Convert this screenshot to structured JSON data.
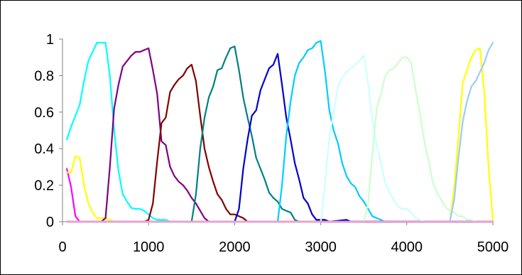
{
  "chart_data": {
    "type": "line",
    "xlim": [
      0,
      5000
    ],
    "ylim": [
      0,
      1
    ],
    "x_ticks": [
      0,
      1000,
      2000,
      3000,
      4000,
      5000
    ],
    "x_tick_labels": [
      "0",
      "1000",
      "2000",
      "3000",
      "4000",
      "5000"
    ],
    "y_ticks": [
      0,
      0.2,
      0.4,
      0.6,
      0.8,
      1
    ],
    "y_tick_labels": [
      "0",
      "0.2",
      "0.4",
      "0.6",
      "0.8",
      "1"
    ],
    "grid": false,
    "legend": "none",
    "series": [
      {
        "color": "#00FFFF",
        "points": [
          [
            50,
            0.45
          ],
          [
            100,
            0.52
          ],
          [
            150,
            0.58
          ],
          [
            200,
            0.64
          ],
          [
            250,
            0.77
          ],
          [
            300,
            0.88
          ],
          [
            350,
            0.93
          ],
          [
            400,
            0.98
          ],
          [
            450,
            0.98
          ],
          [
            500,
            0.98
          ],
          [
            550,
            0.8
          ],
          [
            600,
            0.5
          ],
          [
            650,
            0.28
          ],
          [
            700,
            0.15
          ],
          [
            750,
            0.11
          ],
          [
            800,
            0.075
          ],
          [
            850,
            0.07
          ],
          [
            900,
            0.07
          ],
          [
            950,
            0.06
          ],
          [
            1000,
            0.04
          ],
          [
            1050,
            0.02
          ],
          [
            1100,
            0.01
          ],
          [
            1150,
            0.01
          ],
          [
            1200,
            0.01
          ],
          [
            1250,
            0.0
          ],
          [
            1300,
            0.0
          ],
          [
            5000,
            0.0
          ]
        ]
      },
      {
        "color": "#FF00FF",
        "points": [
          [
            50,
            0.29
          ],
          [
            100,
            0.19
          ],
          [
            150,
            0.03
          ],
          [
            200,
            0.0
          ],
          [
            5000,
            0.0
          ]
        ]
      },
      {
        "color": "#FFFF00",
        "points": [
          [
            50,
            0.27
          ],
          [
            100,
            0.27
          ],
          [
            150,
            0.36
          ],
          [
            200,
            0.35
          ],
          [
            250,
            0.2
          ],
          [
            300,
            0.1
          ],
          [
            350,
            0.05
          ],
          [
            400,
            0.02
          ],
          [
            450,
            0.02
          ],
          [
            500,
            0.02
          ],
          [
            550,
            0.01
          ],
          [
            600,
            0.0
          ],
          [
            4500,
            0.0
          ],
          [
            4550,
            0.18
          ],
          [
            4600,
            0.46
          ],
          [
            4650,
            0.76
          ],
          [
            4700,
            0.83
          ],
          [
            4750,
            0.9
          ],
          [
            4800,
            0.94
          ],
          [
            4850,
            0.95
          ],
          [
            4900,
            0.71
          ],
          [
            4950,
            0.3
          ],
          [
            5000,
            0.01
          ]
        ]
      },
      {
        "color": "#800080",
        "points": [
          [
            50,
            0.0
          ],
          [
            450,
            0.0
          ],
          [
            500,
            0.02
          ],
          [
            550,
            0.3
          ],
          [
            600,
            0.62
          ],
          [
            650,
            0.75
          ],
          [
            700,
            0.85
          ],
          [
            750,
            0.88
          ],
          [
            800,
            0.91
          ],
          [
            850,
            0.93
          ],
          [
            900,
            0.93
          ],
          [
            950,
            0.94
          ],
          [
            1000,
            0.95
          ],
          [
            1050,
            0.83
          ],
          [
            1100,
            0.7
          ],
          [
            1150,
            0.44
          ],
          [
            1200,
            0.42
          ],
          [
            1250,
            0.3
          ],
          [
            1300,
            0.25
          ],
          [
            1350,
            0.22
          ],
          [
            1400,
            0.2
          ],
          [
            1450,
            0.17
          ],
          [
            1500,
            0.13
          ],
          [
            1550,
            0.1
          ],
          [
            1600,
            0.06
          ],
          [
            1650,
            0.02
          ],
          [
            1700,
            0.0
          ],
          [
            5000,
            0.0
          ]
        ]
      },
      {
        "color": "#800000",
        "points": [
          [
            50,
            0.0
          ],
          [
            950,
            0.0
          ],
          [
            1000,
            0.01
          ],
          [
            1050,
            0.1
          ],
          [
            1100,
            0.33
          ],
          [
            1150,
            0.54
          ],
          [
            1200,
            0.57
          ],
          [
            1250,
            0.71
          ],
          [
            1300,
            0.75
          ],
          [
            1350,
            0.78
          ],
          [
            1400,
            0.8
          ],
          [
            1450,
            0.84
          ],
          [
            1500,
            0.86
          ],
          [
            1550,
            0.77
          ],
          [
            1600,
            0.58
          ],
          [
            1650,
            0.4
          ],
          [
            1700,
            0.3
          ],
          [
            1750,
            0.22
          ],
          [
            1800,
            0.15
          ],
          [
            1850,
            0.12
          ],
          [
            1900,
            0.07
          ],
          [
            1950,
            0.04
          ],
          [
            2000,
            0.04
          ],
          [
            2050,
            0.03
          ],
          [
            2100,
            0.02
          ],
          [
            2150,
            0.0
          ],
          [
            5000,
            0.0
          ]
        ]
      },
      {
        "color": "#008080",
        "points": [
          [
            50,
            0.0
          ],
          [
            1500,
            0.0
          ],
          [
            1550,
            0.15
          ],
          [
            1600,
            0.4
          ],
          [
            1650,
            0.57
          ],
          [
            1700,
            0.68
          ],
          [
            1750,
            0.74
          ],
          [
            1800,
            0.83
          ],
          [
            1850,
            0.84
          ],
          [
            1900,
            0.9
          ],
          [
            1950,
            0.95
          ],
          [
            2000,
            0.96
          ],
          [
            2050,
            0.83
          ],
          [
            2100,
            0.68
          ],
          [
            2150,
            0.57
          ],
          [
            2200,
            0.47
          ],
          [
            2250,
            0.35
          ],
          [
            2300,
            0.29
          ],
          [
            2350,
            0.23
          ],
          [
            2400,
            0.16
          ],
          [
            2450,
            0.13
          ],
          [
            2500,
            0.11
          ],
          [
            2550,
            0.07
          ],
          [
            2600,
            0.06
          ],
          [
            2650,
            0.05
          ],
          [
            2700,
            0.01
          ],
          [
            2750,
            0.0
          ],
          [
            5000,
            0.0
          ]
        ]
      },
      {
        "color": "#0000CC",
        "points": [
          [
            50,
            0.0
          ],
          [
            2000,
            0.0
          ],
          [
            2050,
            0.07
          ],
          [
            2100,
            0.29
          ],
          [
            2150,
            0.45
          ],
          [
            2200,
            0.58
          ],
          [
            2250,
            0.61
          ],
          [
            2300,
            0.72
          ],
          [
            2350,
            0.78
          ],
          [
            2400,
            0.84
          ],
          [
            2450,
            0.86
          ],
          [
            2500,
            0.92
          ],
          [
            2550,
            0.75
          ],
          [
            2600,
            0.57
          ],
          [
            2650,
            0.45
          ],
          [
            2700,
            0.32
          ],
          [
            2750,
            0.23
          ],
          [
            2800,
            0.13
          ],
          [
            2850,
            0.1
          ],
          [
            2900,
            0.04
          ],
          [
            2950,
            0.01
          ],
          [
            3000,
            0.01
          ],
          [
            3050,
            0.01
          ],
          [
            3100,
            0.0
          ],
          [
            3300,
            0.01
          ],
          [
            3350,
            0.0
          ],
          [
            5000,
            0.0
          ]
        ]
      },
      {
        "color": "#00CCFF",
        "points": [
          [
            50,
            0.0
          ],
          [
            2500,
            0.0
          ],
          [
            2550,
            0.2
          ],
          [
            2600,
            0.47
          ],
          [
            2650,
            0.66
          ],
          [
            2700,
            0.8
          ],
          [
            2750,
            0.87
          ],
          [
            2800,
            0.9
          ],
          [
            2850,
            0.94
          ],
          [
            2900,
            0.95
          ],
          [
            2950,
            0.98
          ],
          [
            3000,
            0.99
          ],
          [
            3050,
            0.82
          ],
          [
            3100,
            0.61
          ],
          [
            3150,
            0.5
          ],
          [
            3200,
            0.43
          ],
          [
            3250,
            0.32
          ],
          [
            3300,
            0.25
          ],
          [
            3350,
            0.21
          ],
          [
            3400,
            0.19
          ],
          [
            3450,
            0.14
          ],
          [
            3500,
            0.11
          ],
          [
            3550,
            0.07
          ],
          [
            3600,
            0.03
          ],
          [
            3650,
            0.02
          ],
          [
            3700,
            0.01
          ],
          [
            3750,
            0.0
          ],
          [
            5000,
            0.0
          ]
        ]
      },
      {
        "color": "#CCFFFF",
        "points": [
          [
            50,
            0.0
          ],
          [
            3000,
            0.0
          ],
          [
            3050,
            0.21
          ],
          [
            3100,
            0.46
          ],
          [
            3150,
            0.6
          ],
          [
            3200,
            0.74
          ],
          [
            3250,
            0.79
          ],
          [
            3300,
            0.82
          ],
          [
            3350,
            0.84
          ],
          [
            3400,
            0.86
          ],
          [
            3450,
            0.88
          ],
          [
            3500,
            0.91
          ],
          [
            3550,
            0.76
          ],
          [
            3600,
            0.56
          ],
          [
            3650,
            0.42
          ],
          [
            3700,
            0.32
          ],
          [
            3750,
            0.21
          ],
          [
            3800,
            0.16
          ],
          [
            3850,
            0.12
          ],
          [
            3900,
            0.08
          ],
          [
            3950,
            0.07
          ],
          [
            4000,
            0.07
          ],
          [
            4050,
            0.05
          ],
          [
            4100,
            0.02
          ],
          [
            4150,
            0.01
          ],
          [
            4200,
            0.0
          ],
          [
            5000,
            0.0
          ]
        ]
      },
      {
        "color": "#CCFFCC",
        "points": [
          [
            50,
            0.0
          ],
          [
            3500,
            0.0
          ],
          [
            3550,
            0.1
          ],
          [
            3600,
            0.37
          ],
          [
            3650,
            0.62
          ],
          [
            3700,
            0.7
          ],
          [
            3750,
            0.8
          ],
          [
            3800,
            0.83
          ],
          [
            3850,
            0.84
          ],
          [
            3900,
            0.87
          ],
          [
            3950,
            0.9
          ],
          [
            4000,
            0.9
          ],
          [
            4050,
            0.87
          ],
          [
            4100,
            0.73
          ],
          [
            4150,
            0.6
          ],
          [
            4200,
            0.45
          ],
          [
            4250,
            0.34
          ],
          [
            4300,
            0.22
          ],
          [
            4350,
            0.16
          ],
          [
            4400,
            0.12
          ],
          [
            4450,
            0.08
          ],
          [
            4500,
            0.06
          ],
          [
            4550,
            0.05
          ],
          [
            4600,
            0.03
          ],
          [
            4650,
            0.03
          ],
          [
            4700,
            0.01
          ],
          [
            4750,
            0.01
          ],
          [
            4800,
            0.0
          ],
          [
            5000,
            0.0
          ]
        ]
      },
      {
        "color": "#99CCFF",
        "points": [
          [
            50,
            0.0
          ],
          [
            4500,
            0.0
          ],
          [
            4550,
            0.12
          ],
          [
            4600,
            0.35
          ],
          [
            4650,
            0.55
          ],
          [
            4700,
            0.66
          ],
          [
            4750,
            0.74
          ],
          [
            4800,
            0.77
          ],
          [
            4850,
            0.82
          ],
          [
            4900,
            0.87
          ],
          [
            4950,
            0.94
          ],
          [
            5000,
            0.98
          ]
        ]
      },
      {
        "color": "#FF99CC",
        "points": [
          [
            50,
            0.0
          ],
          [
            5000,
            0.0
          ]
        ]
      }
    ]
  }
}
